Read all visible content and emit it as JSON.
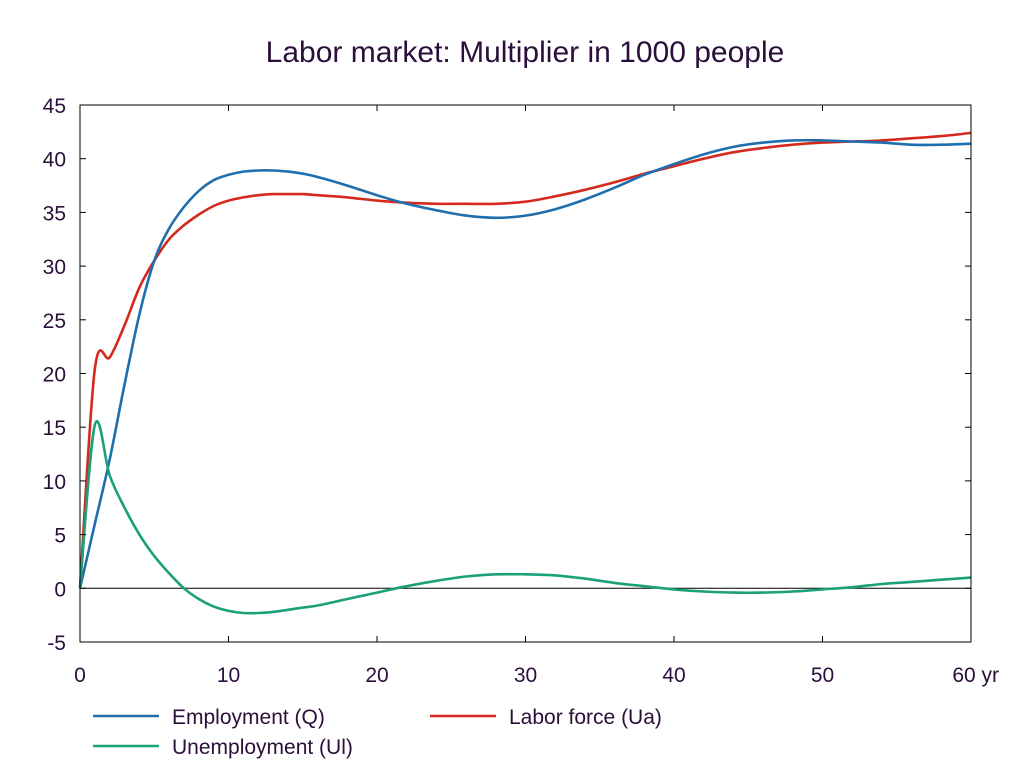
{
  "chart_data": {
    "type": "line",
    "title": "Labor market: Multiplier in 1000 people",
    "x_unit": "yr",
    "xlim": [
      0,
      60
    ],
    "ylim": [
      -5,
      45
    ],
    "x_ticks": [
      0,
      10,
      20,
      30,
      40,
      50,
      60
    ],
    "x_tick_labels": [
      "0",
      "10",
      "20",
      "30",
      "40",
      "50",
      "60 yr"
    ],
    "y_ticks": [
      -5,
      0,
      5,
      10,
      15,
      20,
      25,
      30,
      35,
      40,
      45
    ],
    "y_tick_labels": [
      "-5",
      "0",
      "5",
      "10",
      "15",
      "20",
      "25",
      "30",
      "35",
      "40",
      "45"
    ],
    "zero_line": true,
    "grid": false,
    "legend_position": "bottom",
    "series": [
      {
        "name": "Employment (Q)",
        "color": "#1f6fae",
        "x": [
          0,
          1,
          2,
          3,
          4,
          5,
          6,
          7,
          8,
          9,
          10,
          11,
          12,
          13,
          14,
          15,
          16,
          18,
          20,
          22,
          24,
          26,
          28,
          30,
          32,
          34,
          36,
          38,
          40,
          42,
          44,
          46,
          48,
          50,
          52,
          54,
          56,
          58,
          60
        ],
        "y": [
          0,
          6,
          12,
          19,
          25.5,
          30.5,
          33.5,
          35.5,
          37,
          38,
          38.5,
          38.8,
          38.9,
          38.9,
          38.8,
          38.6,
          38.3,
          37.5,
          36.6,
          35.8,
          35.2,
          34.7,
          34.5,
          34.7,
          35.3,
          36.2,
          37.3,
          38.5,
          39.5,
          40.4,
          41.1,
          41.5,
          41.7,
          41.7,
          41.6,
          41.5,
          41.3,
          41.3,
          41.4
        ]
      },
      {
        "name": "Labor force (Ua)",
        "color": "#d42a1e",
        "x": [
          0,
          1,
          2,
          3,
          4,
          5,
          6,
          7,
          8,
          9,
          10,
          11,
          12,
          13,
          14,
          15,
          16,
          18,
          20,
          22,
          24,
          26,
          28,
          30,
          32,
          34,
          36,
          38,
          40,
          42,
          44,
          46,
          48,
          50,
          52,
          54,
          56,
          58,
          60
        ],
        "y": [
          0,
          20.4,
          21.5,
          24.5,
          28,
          30.5,
          32.5,
          33.8,
          34.8,
          35.6,
          36.1,
          36.4,
          36.6,
          36.7,
          36.7,
          36.7,
          36.6,
          36.4,
          36.1,
          35.9,
          35.8,
          35.8,
          35.8,
          36,
          36.5,
          37.1,
          37.8,
          38.6,
          39.3,
          40,
          40.6,
          41,
          41.3,
          41.5,
          41.6,
          41.7,
          41.9,
          42.1,
          42.4
        ]
      },
      {
        "name": "Unemployment (Ul)",
        "color": "#1aa07a",
        "x": [
          0,
          1,
          2,
          3,
          4,
          5,
          6,
          7,
          8,
          9,
          10,
          11,
          12,
          13,
          14,
          15,
          16,
          18,
          20,
          22,
          24,
          26,
          28,
          30,
          32,
          34,
          36,
          38,
          40,
          42,
          44,
          46,
          48,
          50,
          52,
          54,
          56,
          58,
          60
        ],
        "y": [
          0,
          15.2,
          10.5,
          7.5,
          5,
          3,
          1.4,
          0,
          -1,
          -1.7,
          -2.1,
          -2.3,
          -2.3,
          -2.2,
          -2,
          -1.8,
          -1.6,
          -1,
          -0.4,
          0.2,
          0.7,
          1.1,
          1.3,
          1.3,
          1.2,
          0.9,
          0.5,
          0.2,
          -0.1,
          -0.3,
          -0.4,
          -0.4,
          -0.3,
          -0.1,
          0.1,
          0.4,
          0.6,
          0.8,
          1
        ]
      }
    ]
  }
}
